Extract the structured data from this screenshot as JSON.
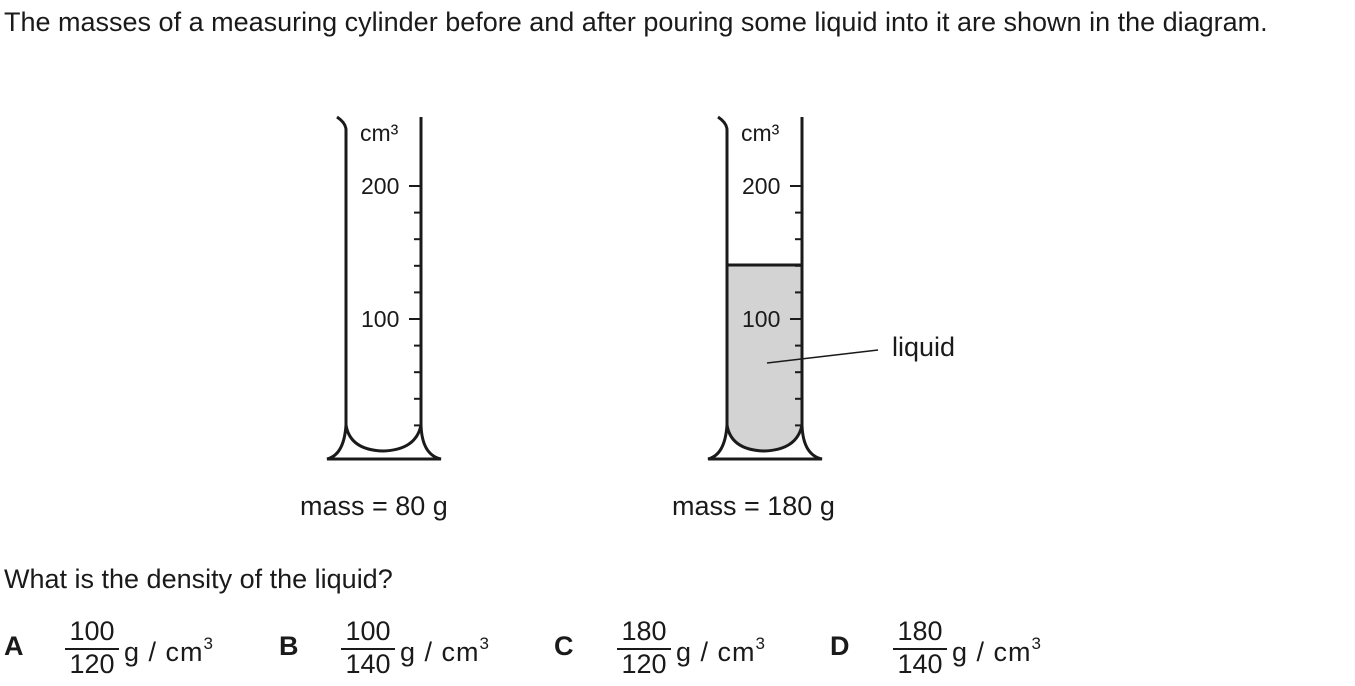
{
  "intro_text": "The masses of a measuring cylinder before and after pouring some liquid into it are shown in the diagram.",
  "cylinders": [
    {
      "unit": "cm³",
      "scale_labels": [
        "200",
        "100"
      ],
      "mass_label": "mass = 80 g"
    },
    {
      "unit": "cm³",
      "scale_labels": [
        "200",
        "100"
      ],
      "mass_label": "mass = 180 g",
      "liquid_label": "liquid",
      "liquid_fill": "#d3d3d3"
    }
  ],
  "question": "What is the density of the liquid?",
  "options": [
    {
      "letter": "A",
      "numerator": "100",
      "denominator": "120",
      "unit": "g / cm",
      "unit_power": "3"
    },
    {
      "letter": "B",
      "numerator": "100",
      "denominator": "140",
      "unit": "g / cm",
      "unit_power": "3"
    },
    {
      "letter": "C",
      "numerator": "180",
      "denominator": "120",
      "unit": "g / cm",
      "unit_power": "3"
    },
    {
      "letter": "D",
      "numerator": "180",
      "denominator": "140",
      "unit": "g / cm",
      "unit_power": "3"
    }
  ]
}
